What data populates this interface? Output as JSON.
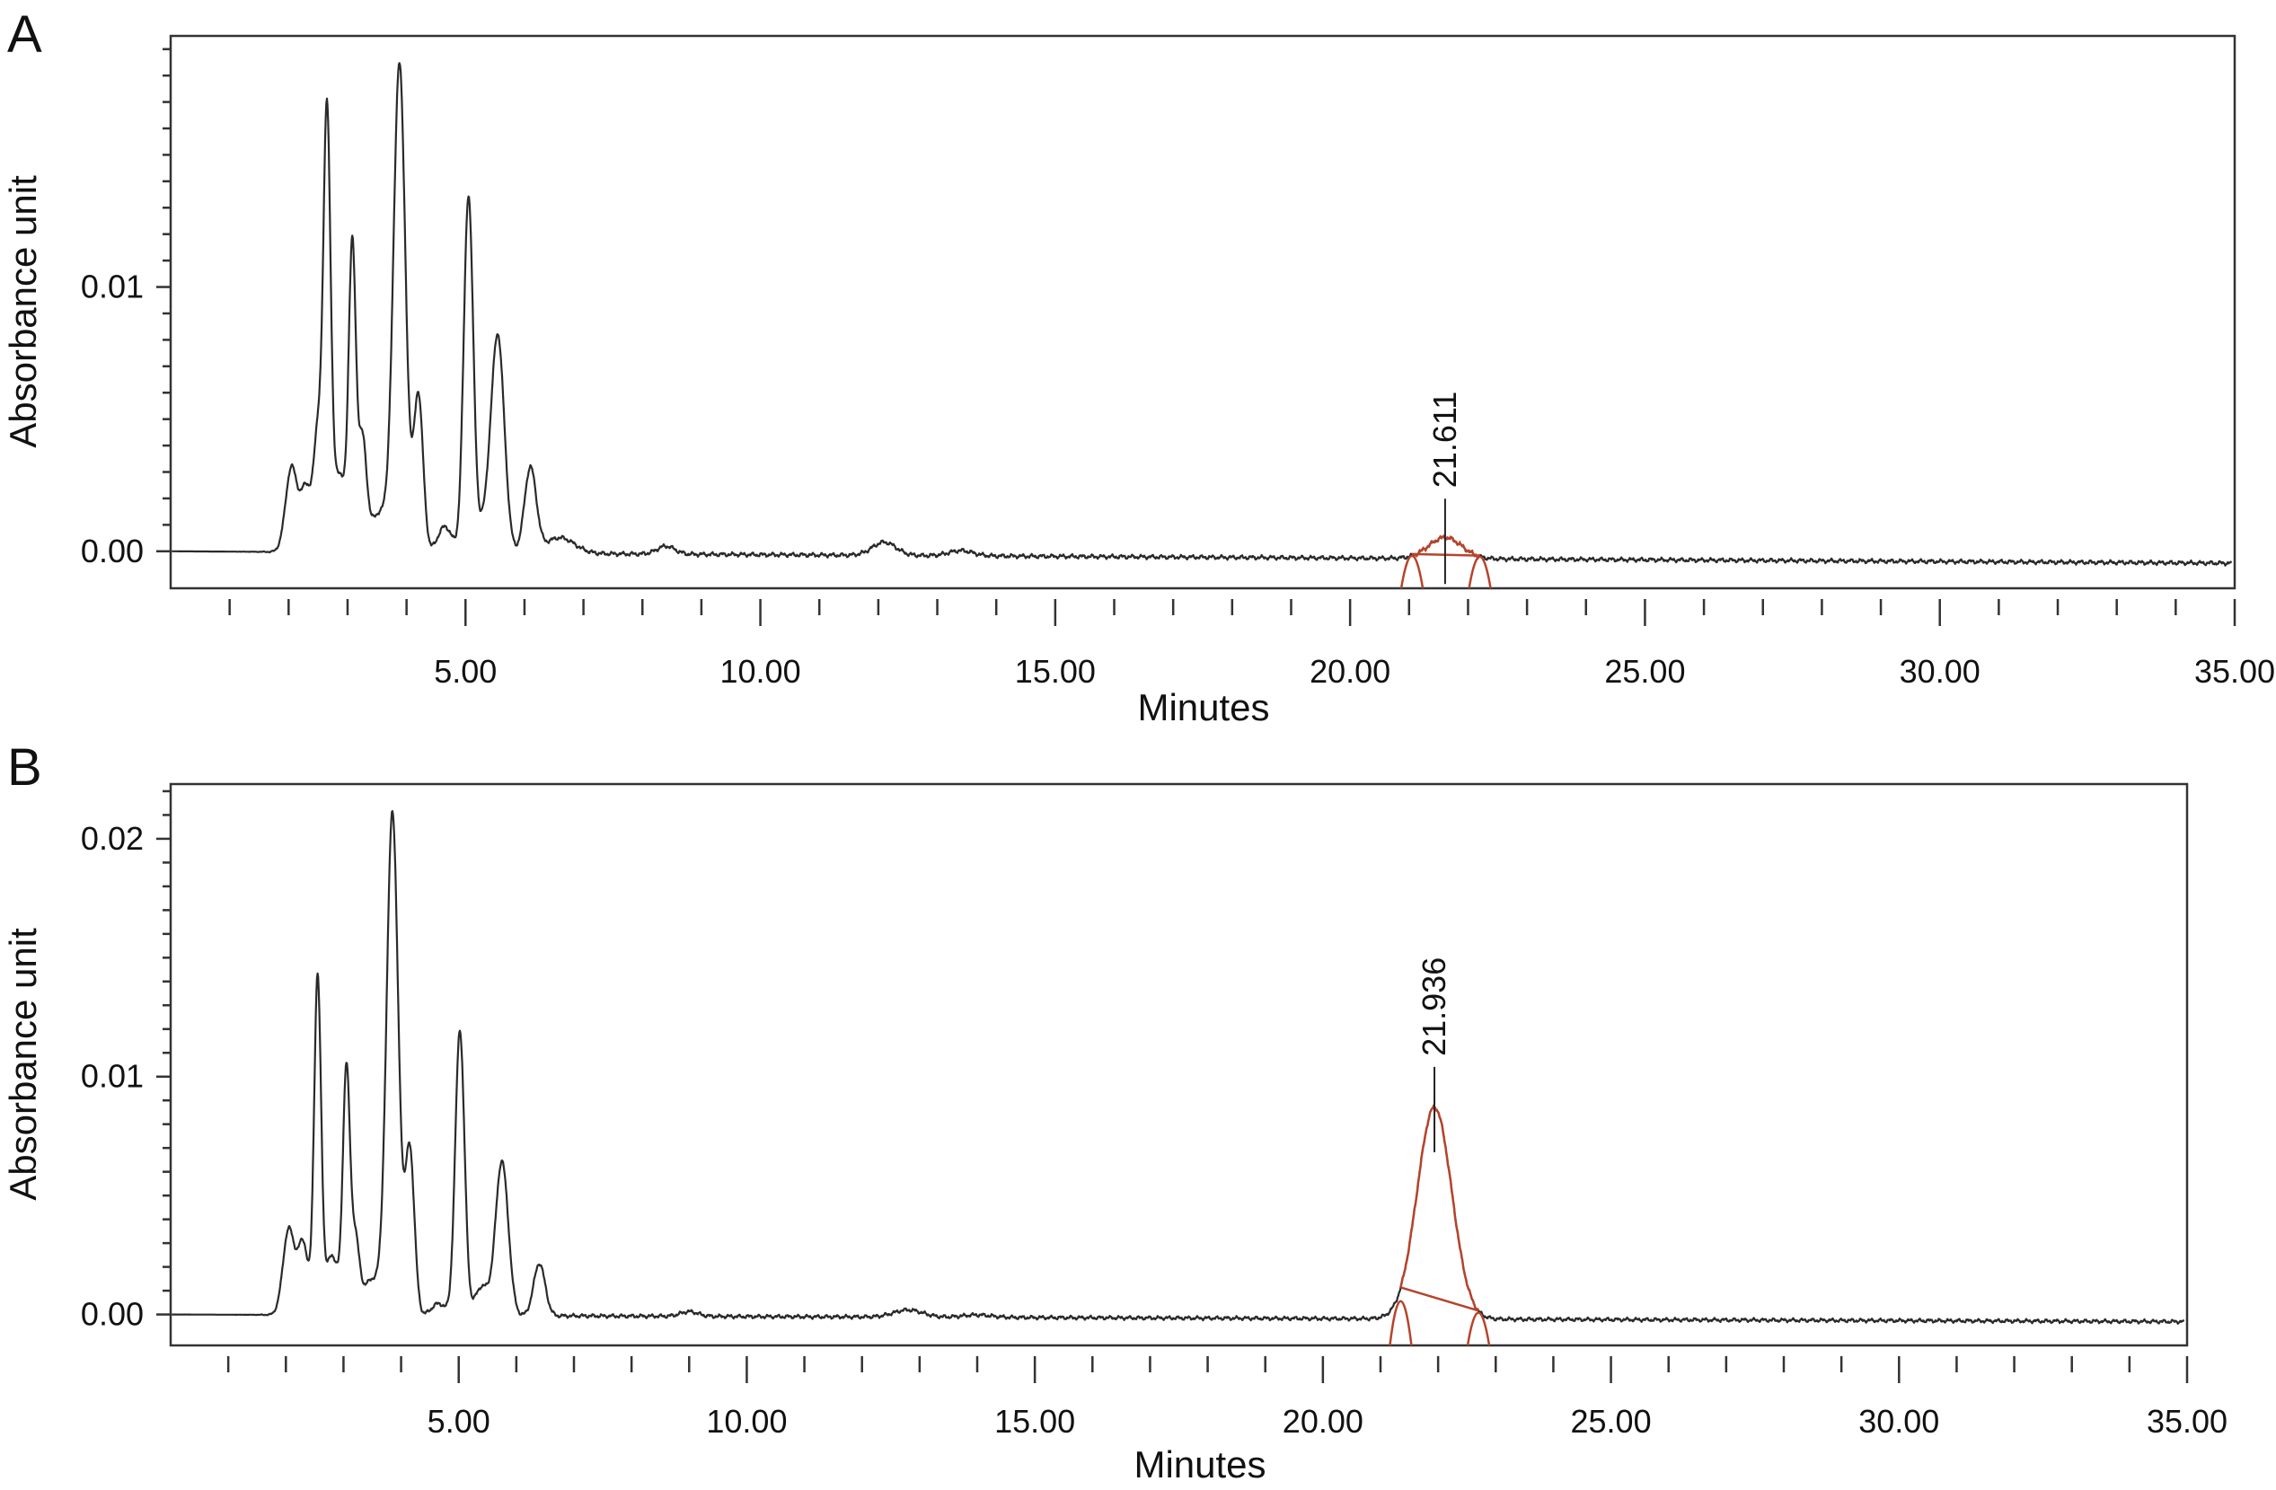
{
  "chart_data": [
    {
      "panel": "A",
      "type": "line",
      "xlabel": "Minutes",
      "ylabel": "Absorbance unit",
      "xlim": [
        0,
        35
      ],
      "ylim": [
        -0.0014,
        0.0195
      ],
      "x_ticks": [
        5,
        10,
        15,
        20,
        25,
        30,
        35
      ],
      "x_tick_labels": [
        "5.00",
        "10.00",
        "15.00",
        "20.00",
        "25.00",
        "30.00",
        "35.00"
      ],
      "y_ticks": [
        0.0,
        0.01
      ],
      "y_tick_labels": [
        "0.00",
        "0.01"
      ],
      "grid": false,
      "baseline_drift": -0.00045,
      "peaks": [
        {
          "x": 2.05,
          "y": 0.0032,
          "w": 0.1
        },
        {
          "x": 2.3,
          "y": 0.0024,
          "w": 0.09
        },
        {
          "x": 2.5,
          "y": 0.0045,
          "w": 0.07
        },
        {
          "x": 2.65,
          "y": 0.016,
          "w": 0.06
        },
        {
          "x": 2.85,
          "y": 0.003,
          "w": 0.12
        },
        {
          "x": 3.08,
          "y": 0.0112,
          "w": 0.06
        },
        {
          "x": 3.25,
          "y": 0.004,
          "w": 0.07
        },
        {
          "x": 3.55,
          "y": 0.0015,
          "w": 0.18
        },
        {
          "x": 3.88,
          "y": 0.0183,
          "w": 0.1
        },
        {
          "x": 4.2,
          "y": 0.006,
          "w": 0.08
        },
        {
          "x": 4.65,
          "y": 0.001,
          "w": 0.12
        },
        {
          "x": 5.05,
          "y": 0.0135,
          "w": 0.08
        },
        {
          "x": 5.35,
          "y": 0.0012,
          "w": 0.12
        },
        {
          "x": 5.55,
          "y": 0.008,
          "w": 0.11
        },
        {
          "x": 6.1,
          "y": 0.0032,
          "w": 0.1
        },
        {
          "x": 6.6,
          "y": 0.0006,
          "w": 0.25
        },
        {
          "x": 8.4,
          "y": 0.0003,
          "w": 0.15
        },
        {
          "x": 12.1,
          "y": 0.0005,
          "w": 0.2
        },
        {
          "x": 13.4,
          "y": 0.0002,
          "w": 0.2
        }
      ],
      "annotated_peak": {
        "label": "21.611",
        "x": 21.611,
        "y": 0.0008,
        "w": 0.28,
        "base_start": 21.05,
        "base_end": 22.2
      }
    },
    {
      "panel": "B",
      "type": "line",
      "xlabel": "Minutes",
      "ylabel": "Absorbance unit",
      "xlim": [
        0,
        35
      ],
      "ylim": [
        -0.0013,
        0.0223
      ],
      "x_ticks": [
        5,
        10,
        15,
        20,
        25,
        30,
        35
      ],
      "x_tick_labels": [
        "5.00",
        "10.00",
        "15.00",
        "20.00",
        "25.00",
        "30.00",
        "35.00"
      ],
      "y_ticks": [
        0.0,
        0.01,
        0.02
      ],
      "y_tick_labels": [
        "0.00",
        "0.01",
        "0.02"
      ],
      "grid": false,
      "baseline_drift": -0.0003,
      "peaks": [
        {
          "x": 2.05,
          "y": 0.0036,
          "w": 0.1
        },
        {
          "x": 2.3,
          "y": 0.003,
          "w": 0.09
        },
        {
          "x": 2.55,
          "y": 0.014,
          "w": 0.06
        },
        {
          "x": 2.8,
          "y": 0.0025,
          "w": 0.12
        },
        {
          "x": 3.05,
          "y": 0.01,
          "w": 0.06
        },
        {
          "x": 3.2,
          "y": 0.003,
          "w": 0.07
        },
        {
          "x": 3.5,
          "y": 0.0015,
          "w": 0.18
        },
        {
          "x": 3.85,
          "y": 0.021,
          "w": 0.1
        },
        {
          "x": 4.15,
          "y": 0.007,
          "w": 0.08
        },
        {
          "x": 4.65,
          "y": 0.0005,
          "w": 0.12
        },
        {
          "x": 5.02,
          "y": 0.012,
          "w": 0.08
        },
        {
          "x": 5.4,
          "y": 0.0012,
          "w": 0.12
        },
        {
          "x": 5.75,
          "y": 0.0065,
          "w": 0.11
        },
        {
          "x": 6.4,
          "y": 0.0022,
          "w": 0.1
        },
        {
          "x": 9.0,
          "y": 0.0002,
          "w": 0.15
        },
        {
          "x": 12.8,
          "y": 0.0003,
          "w": 0.25
        },
        {
          "x": 14.0,
          "y": 0.0001,
          "w": 0.25
        }
      ],
      "annotated_peak": {
        "label": "21.936",
        "x": 21.936,
        "y": 0.0089,
        "w": 0.3,
        "base_start": 21.35,
        "base_end": 22.7
      }
    }
  ]
}
